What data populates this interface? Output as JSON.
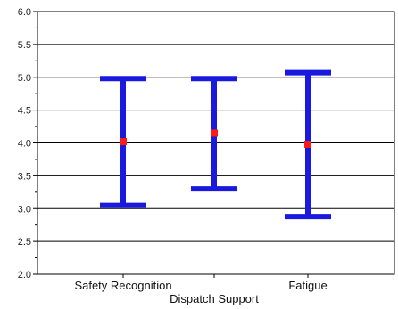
{
  "chart_data": {
    "type": "error-bar",
    "title": "",
    "xlabel": "Dispatch Support",
    "ylabel": "",
    "ylim": [
      2.0,
      6.0
    ],
    "yticks": [
      "2.0",
      "2.5",
      "3.0",
      "3.5",
      "4.0",
      "4.5",
      "5.0",
      "5.5",
      "6.0"
    ],
    "grid": true,
    "categories": [
      "Safety Recognition",
      "",
      "Fatigue"
    ],
    "points": [
      {
        "mean": 4.02,
        "low": 3.05,
        "high": 4.98
      },
      {
        "mean": 4.15,
        "low": 3.3,
        "high": 4.98
      },
      {
        "mean": 3.98,
        "low": 2.88,
        "high": 5.07
      }
    ],
    "colors": {
      "bar": "#1a1adf",
      "marker": "#ff1a1a",
      "grid": "#000000"
    }
  }
}
